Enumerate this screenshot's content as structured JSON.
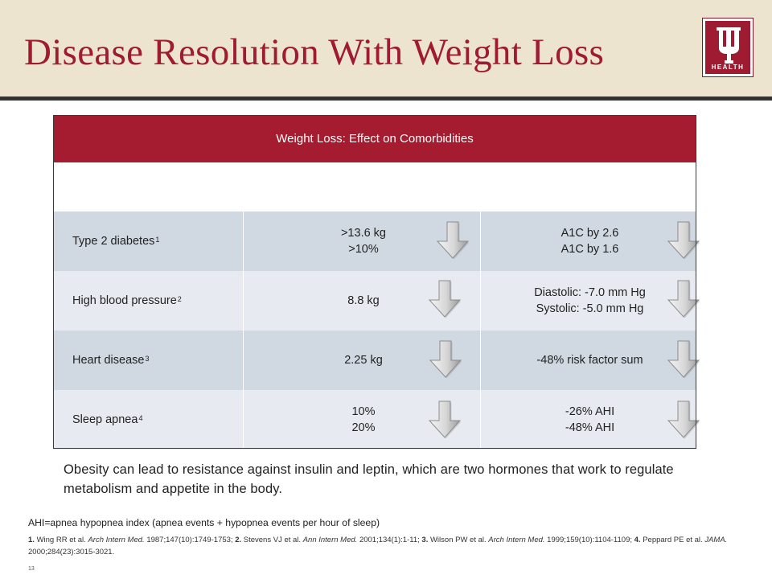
{
  "title": "Disease Resolution With Weight Loss",
  "logo": {
    "text": "HEALTH",
    "brand_color": "#9e1b32"
  },
  "table": {
    "heading": "Weight Loss: Effect on Comorbidities",
    "header_color": "#a51c30",
    "arrow_icon": "down-arrow-icon",
    "rows": [
      {
        "condition": "Type 2 diabetes",
        "ref": "1",
        "weight_lines": [
          ">13.6 kg",
          ">10%"
        ],
        "effect_lines": [
          "A1C by 2.6",
          "A1C by 1.6"
        ]
      },
      {
        "condition": "High blood pressure",
        "ref": "2",
        "weight_lines": [
          "8.8 kg",
          ""
        ],
        "effect_lines": [
          "Diastolic: -7.0 mm Hg",
          "Systolic: -5.0 mm Hg"
        ]
      },
      {
        "condition": "Heart disease",
        "ref": "3",
        "weight_lines": [
          "2.25 kg",
          ""
        ],
        "effect_lines": [
          "-48% risk factor sum",
          ""
        ]
      },
      {
        "condition": "Sleep apnea",
        "ref": "4",
        "weight_lines": [
          "10%",
          "20%"
        ],
        "effect_lines": [
          "-26% AHI",
          "-48% AHI"
        ]
      }
    ]
  },
  "body_text": "Obesity can lead to resistance against insulin and leptin, which are two hormones that work to regulate metabolism and appetite in the body.",
  "abbreviation_note": "AHI=apnea hypopnea index (apnea events + hypopnea events per hour of sleep)",
  "references": [
    {
      "num": "1.",
      "pre": "Wing RR et al.",
      "journal": "Arch Intern Med.",
      "cite": "1987;147(10):1749-1753;"
    },
    {
      "num": "2.",
      "pre": "Stevens VJ et al.",
      "journal": "Ann Intern Med.",
      "cite": "2001;134(1):1-11;"
    },
    {
      "num": "3.",
      "pre": "Wilson PW et al.",
      "journal": "Arch Intern Med.",
      "cite": "1999;159(10):1104-1109;"
    },
    {
      "num": "4.",
      "pre": "Peppard PE et al.",
      "journal": "JAMA.",
      "cite": "2000;284(23):3015-3021."
    }
  ],
  "page_number": "13"
}
